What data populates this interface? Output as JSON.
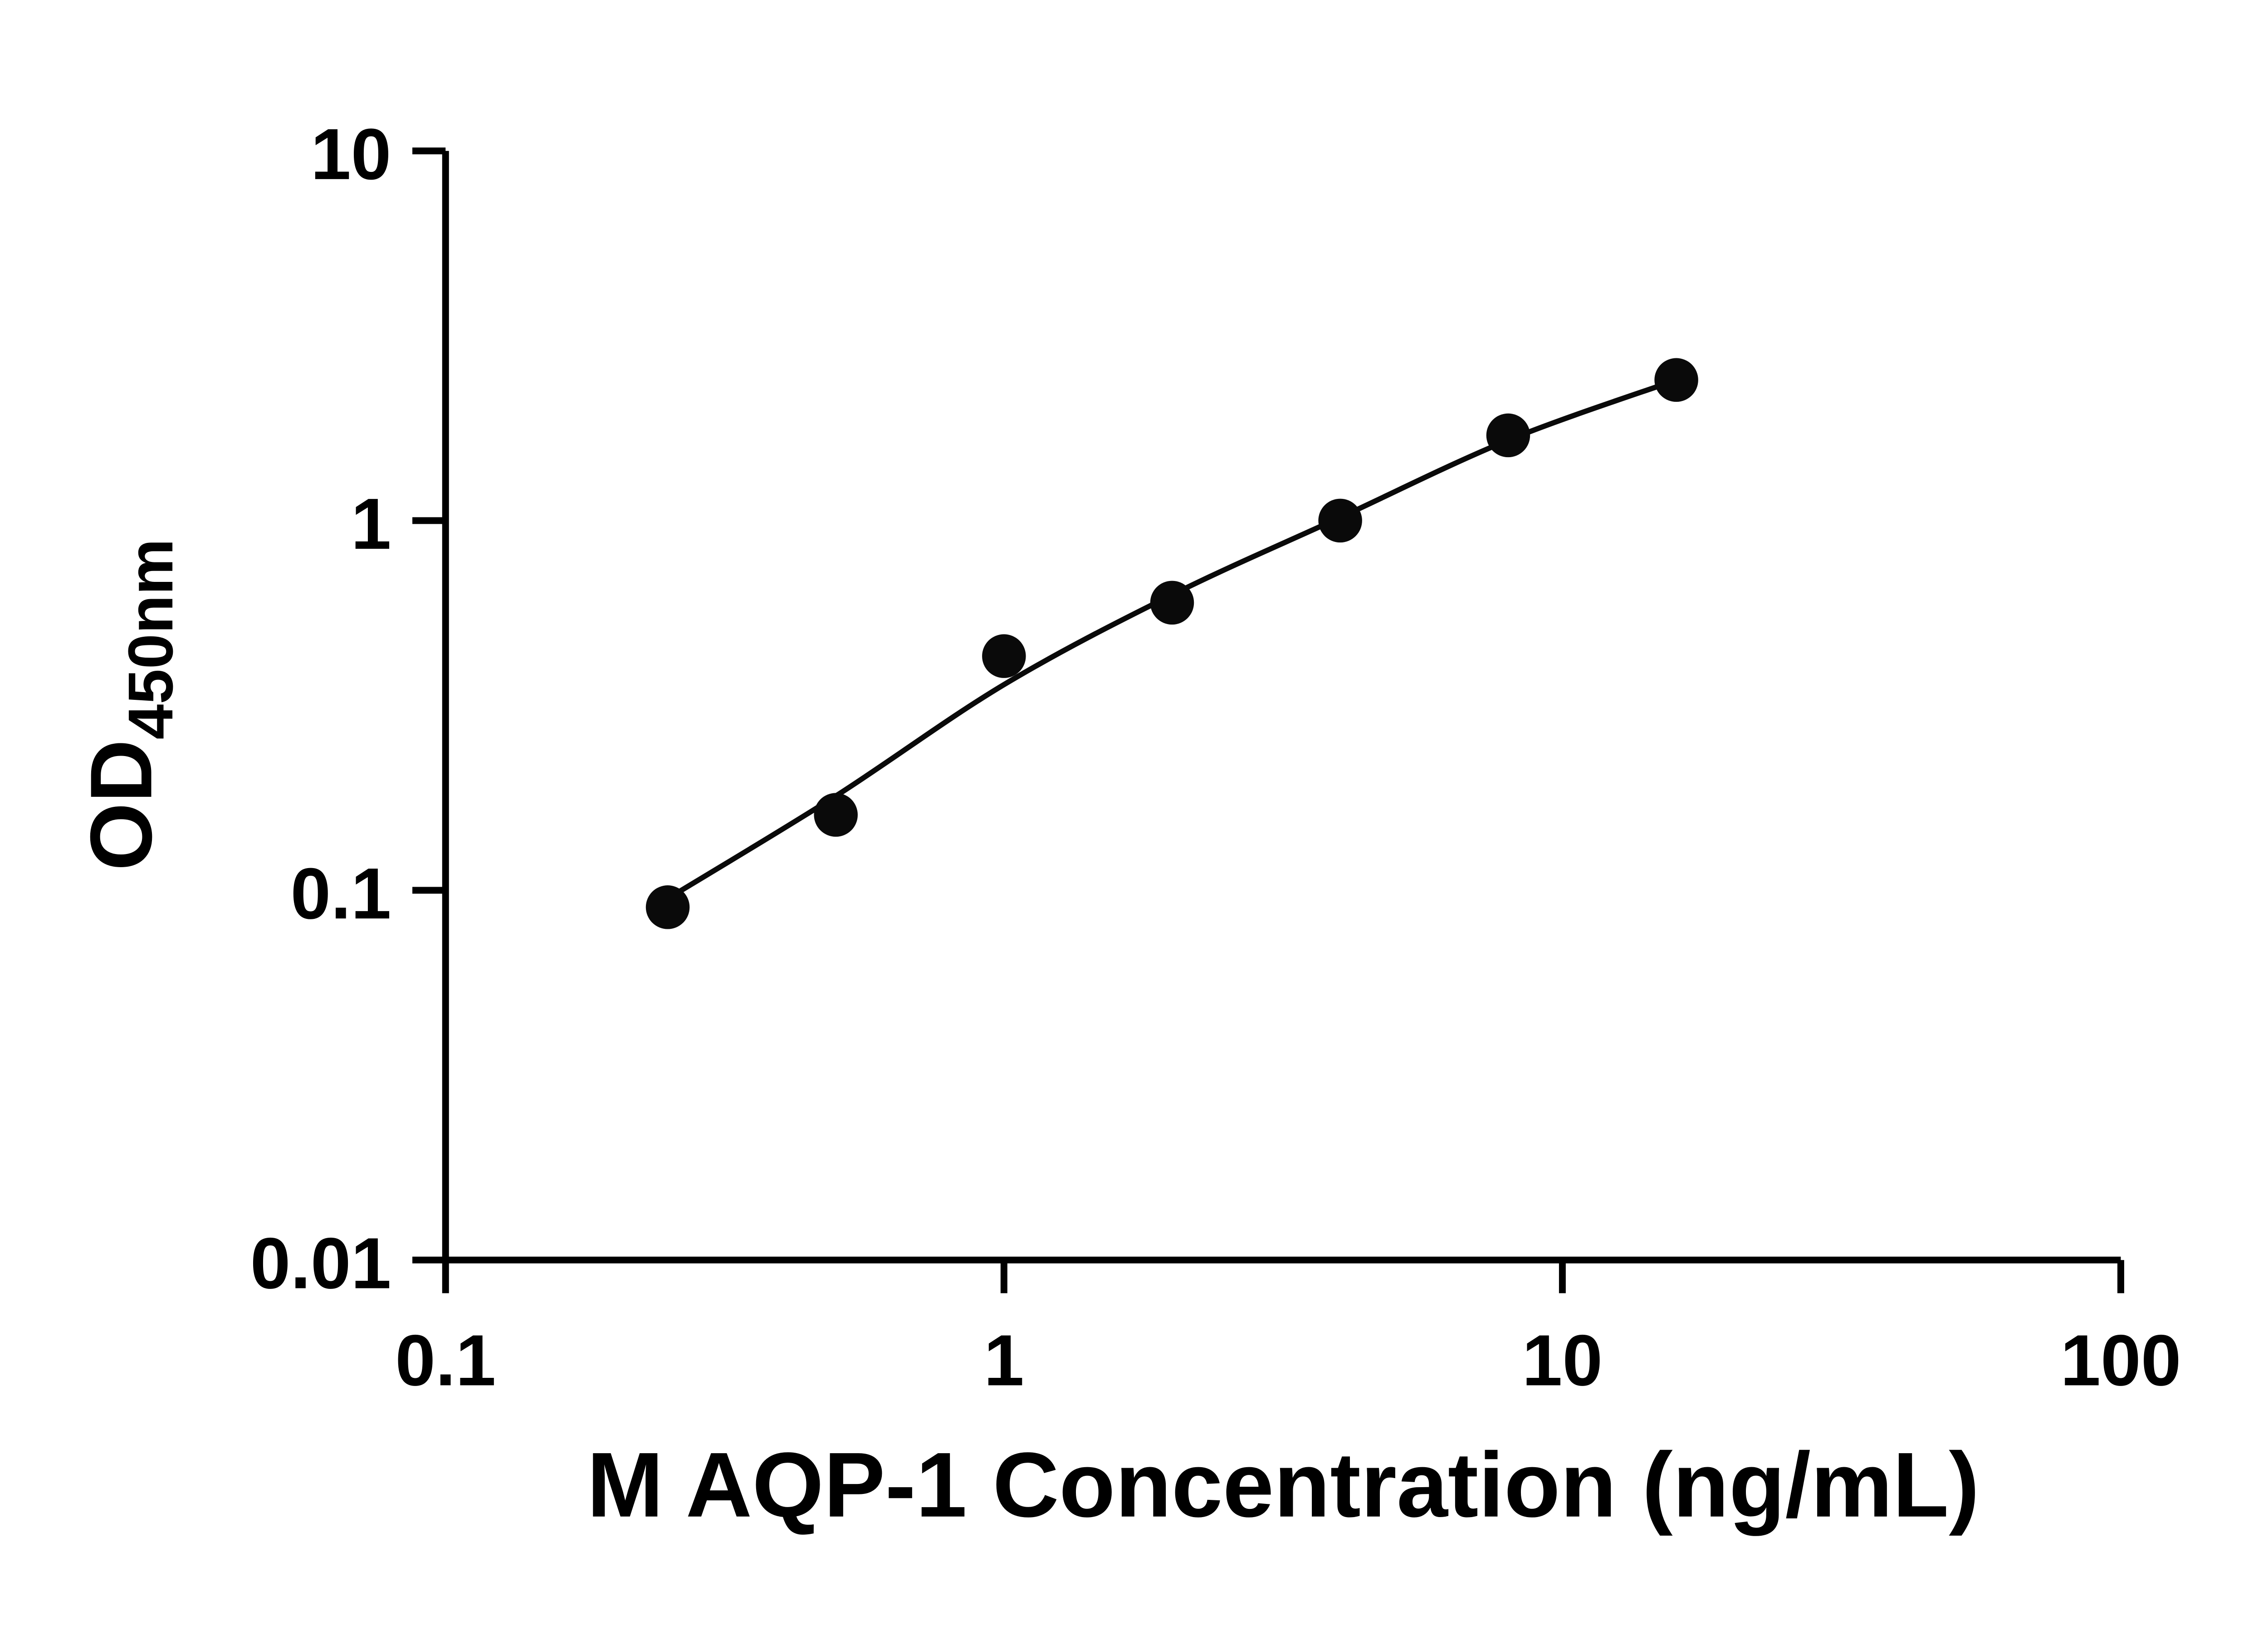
{
  "chart_data": {
    "type": "scatter",
    "subtype": "log-log standard curve with fitted line",
    "title": "",
    "xlabel": "M AQP-1 Concentration (ng/mL)",
    "ylabel_main": "OD",
    "ylabel_sub": "450nm",
    "x_scale": "log",
    "y_scale": "log",
    "xlim": [
      0.1,
      100
    ],
    "ylim": [
      0.01,
      10
    ],
    "grid": false,
    "legend": false,
    "x_ticks": [
      {
        "v": 0.1,
        "label": "0.1"
      },
      {
        "v": 1,
        "label": "1"
      },
      {
        "v": 10,
        "label": "10"
      },
      {
        "v": 100,
        "label": "100"
      }
    ],
    "y_ticks": [
      {
        "v": 0.01,
        "label": "0.01"
      },
      {
        "v": 0.1,
        "label": "0.1"
      },
      {
        "v": 1,
        "label": "1"
      },
      {
        "v": 10,
        "label": "10"
      }
    ],
    "points": [
      [
        0.25,
        0.09
      ],
      [
        0.5,
        0.16
      ],
      [
        1,
        0.43
      ],
      [
        2,
        0.6
      ],
      [
        4,
        1.0
      ],
      [
        8,
        1.7
      ],
      [
        16,
        2.4
      ]
    ],
    "fit_curve": [
      [
        0.25,
        0.095
      ],
      [
        0.5,
        0.18
      ],
      [
        1,
        0.36
      ],
      [
        2,
        0.63
      ],
      [
        4,
        1.02
      ],
      [
        8,
        1.65
      ],
      [
        16,
        2.4
      ]
    ],
    "marker_color": "#0a0a0a",
    "line_color": "#0a0a0a",
    "axis_color": "#000000",
    "background": "#ffffff"
  }
}
